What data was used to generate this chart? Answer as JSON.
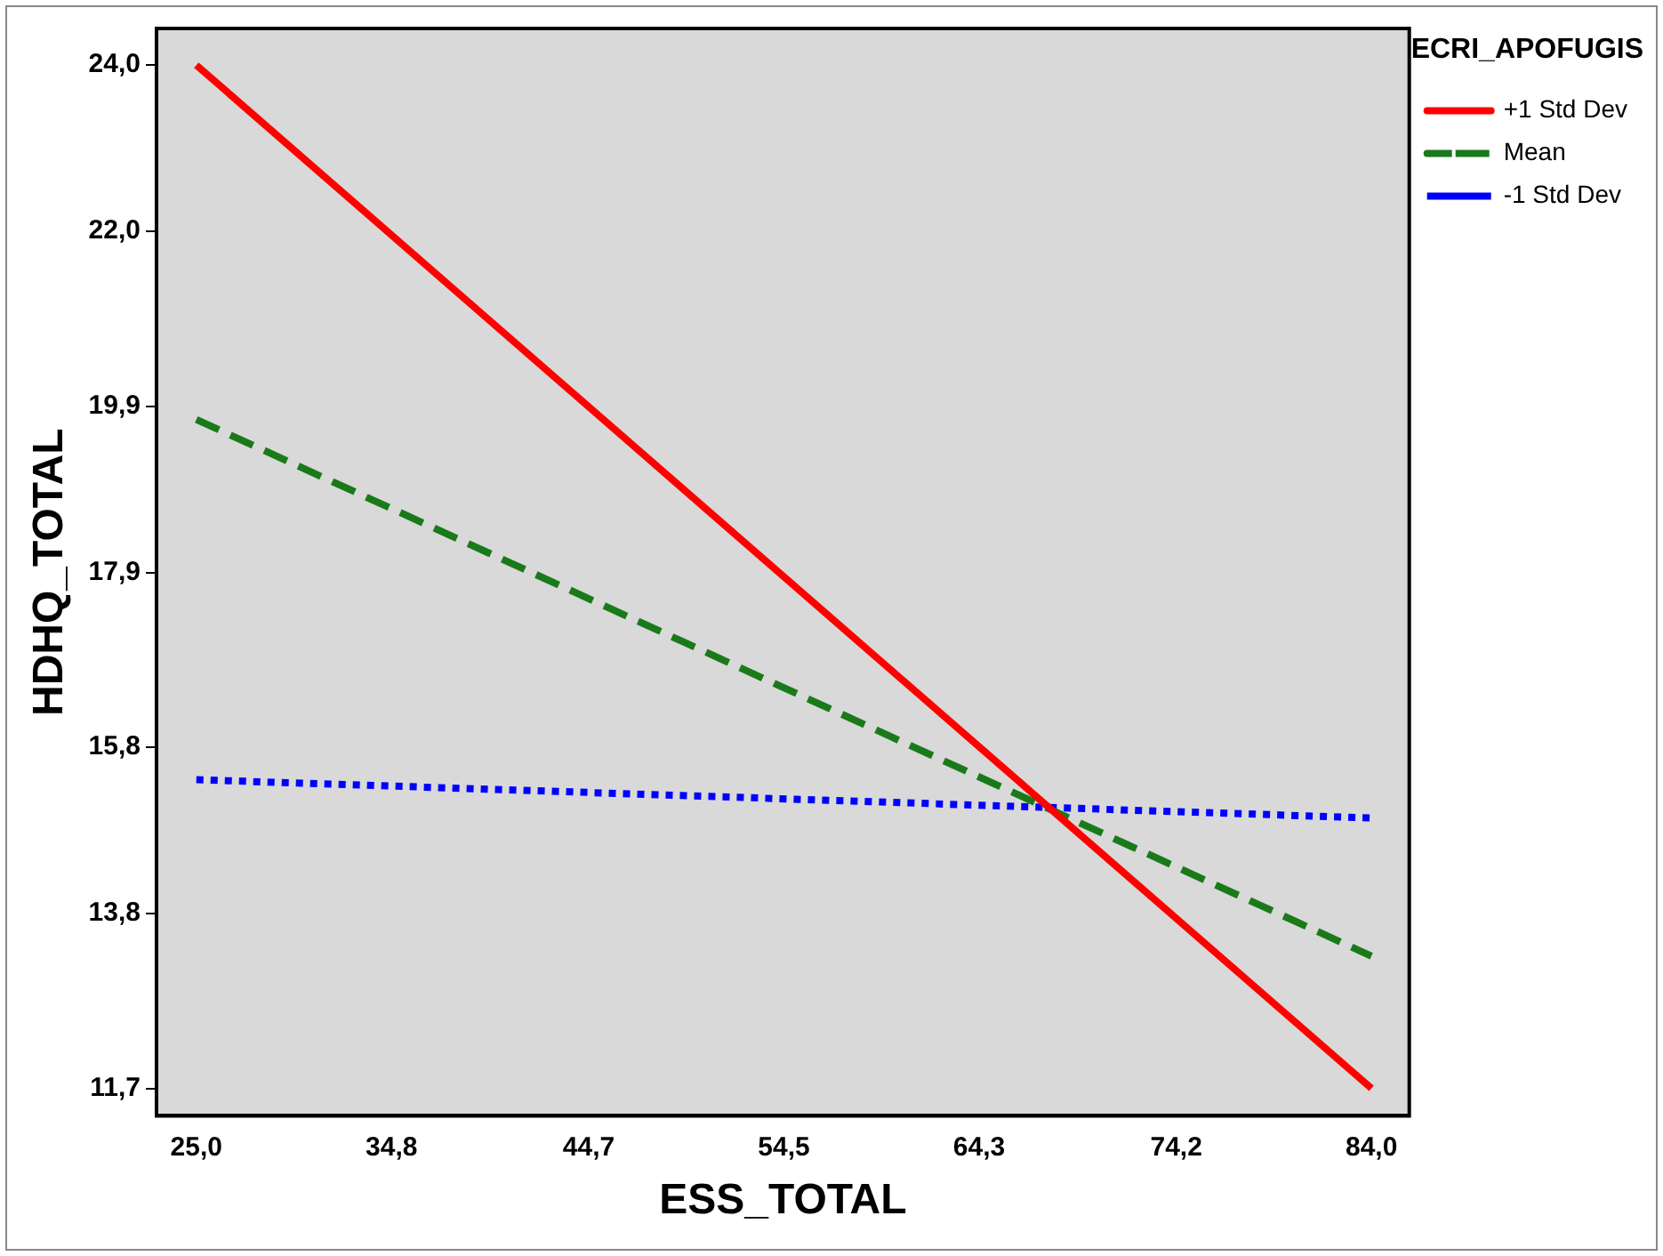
{
  "chart_data": {
    "type": "line",
    "xlabel": "ESS_TOTAL",
    "ylabel": "HDHQ_TOTAL",
    "legend_title": "ECRI_APOFUGIS",
    "legend": "right",
    "grid": false,
    "marker": "none",
    "x": [
      25.0,
      84.0
    ],
    "xlim": [
      23.0,
      85.9
    ],
    "ylim": [
      11.37,
      24.44
    ],
    "xticks": [
      {
        "value": 25.0,
        "label": "25,0"
      },
      {
        "value": 34.8,
        "label": "34,8"
      },
      {
        "value": 44.7,
        "label": "44,7"
      },
      {
        "value": 54.5,
        "label": "54,5"
      },
      {
        "value": 64.3,
        "label": "64,3"
      },
      {
        "value": 74.2,
        "label": "74,2"
      },
      {
        "value": 84.0,
        "label": "84,0"
      }
    ],
    "yticks": [
      {
        "value": 11.7,
        "label": "11,7"
      },
      {
        "value": 13.8,
        "label": "13,8"
      },
      {
        "value": 15.8,
        "label": "15,8"
      },
      {
        "value": 17.9,
        "label": "17,9"
      },
      {
        "value": 19.9,
        "label": "19,9"
      },
      {
        "value": 22.0,
        "label": "22,0"
      },
      {
        "value": 24.0,
        "label": "24,0"
      }
    ],
    "series": [
      {
        "name": "+1 Std Dev",
        "color": "#ff0000",
        "line_style": "solid",
        "values": [
          24.0,
          11.7
        ]
      },
      {
        "name": "Mean",
        "color": "#1a7a1a",
        "line_style": "dashed",
        "values": [
          19.74,
          13.29
        ]
      },
      {
        "name": "-1 Std Dev",
        "color": "#0000ff",
        "line_style": "dotted",
        "values": [
          15.41,
          14.95
        ]
      }
    ]
  }
}
